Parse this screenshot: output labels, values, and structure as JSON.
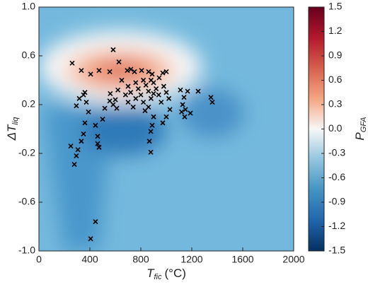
{
  "chart_data": {
    "type": "scatter",
    "xlabel": {
      "symbol": "T",
      "subscript": "fic",
      "unit": "(°C)"
    },
    "ylabel": {
      "symbol": "ΔT",
      "subscript": "liq"
    },
    "xlim": [
      0,
      2000
    ],
    "xticks": [
      0,
      400,
      800,
      1200,
      1600,
      2000
    ],
    "ylim": [
      -1,
      1
    ],
    "yticks": [
      {
        "value": -1,
        "label": "-1.0"
      },
      -0.6,
      -0.2,
      0.2,
      0.6,
      {
        "value": 1,
        "label": "1.0"
      }
    ],
    "marker_color": "#000000",
    "x": [
      261,
      333,
      361,
      406,
      472,
      556,
      583,
      628,
      694,
      722,
      750,
      806,
      861,
      889,
      944,
      972,
      1000,
      650,
      700,
      720,
      760,
      780,
      800,
      820,
      840,
      860,
      880,
      900,
      920,
      940,
      960,
      980,
      1000,
      1020,
      700,
      740,
      760,
      820,
      860,
      880,
      900,
      680,
      620,
      600,
      560,
      294,
      317,
      350,
      372,
      389,
      361,
      350,
      333,
      306,
      278,
      294,
      250,
      444,
      461,
      472,
      461,
      500,
      517,
      556,
      583,
      611,
      444,
      406,
      833,
      878,
      867,
      878,
      889,
      900,
      972,
      1000,
      1028,
      1128,
      1150,
      1111,
      1139,
      1167,
      1189,
      1250,
      1350,
      1361,
      1144,
      1120
    ],
    "y": [
      0.54,
      0.48,
      0.3,
      0.45,
      0.48,
      0.47,
      0.65,
      0.55,
      0.48,
      0.49,
      0.47,
      0.48,
      0.47,
      0.45,
      0.42,
      0.46,
      0.47,
      0.4,
      0.35,
      0.3,
      0.38,
      0.33,
      0.28,
      0.4,
      0.36,
      0.31,
      0.25,
      0.38,
      0.33,
      0.28,
      0.22,
      0.35,
      0.3,
      0.25,
      0.22,
      0.18,
      0.25,
      0.22,
      0.18,
      0.4,
      0.29,
      0.28,
      0.32,
      0.24,
      0.29,
      0.19,
      0.25,
      0.28,
      0.22,
      0.14,
      0.05,
      -0.04,
      -0.1,
      -0.17,
      -0.29,
      -0.22,
      -0.14,
      0.03,
      -0.06,
      -0.15,
      -0.12,
      0.08,
      0.17,
      0.23,
      0.2,
      0.17,
      -0.76,
      -0.9,
      0.15,
      -0.19,
      -0.1,
      -0.02,
      0.03,
      0.1,
      0.05,
      0.1,
      0.16,
      0.2,
      0.16,
      0.32,
      0.26,
      0.31,
      0.13,
      0.31,
      0.26,
      0.22,
      0.1,
      0.14
    ],
    "colorbar": {
      "label": {
        "symbol": "P",
        "subscript": "GFA"
      },
      "lim": [
        -1.5,
        1.5
      ],
      "colors": [
        "#053061",
        "#2166ac",
        "#4393c3",
        "#92c5de",
        "#f7f7f7",
        "#f4a582",
        "#d6604d",
        "#b2182b",
        "#67001f"
      ],
      "ticks": [
        1.5,
        1.2,
        0.9,
        0.6,
        0.3,
        {
          "value": 0,
          "label": "0.0"
        },
        -0.3,
        -0.6,
        -0.9,
        -1.2,
        -1.5
      ]
    }
  }
}
